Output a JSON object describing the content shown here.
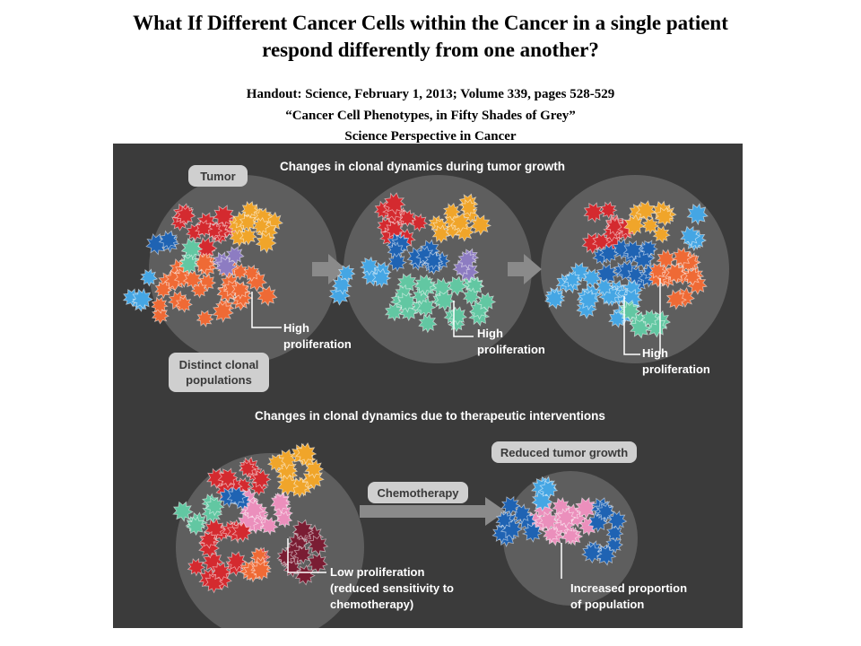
{
  "title": {
    "line1": "What If Different Cancer Cells within the Cancer in a single patient",
    "line2": "respond differently from one another?"
  },
  "handout": {
    "line1": "Handout: Science, February 1, 2013;  Volume 339, pages 528-529",
    "line2": "“Cancer Cell Phenotypes, in Fifty Shades of Grey”",
    "line3": "Science Perspective in Cancer"
  },
  "figure": {
    "tumor_label": "Tumor",
    "section1_header": "Changes in clonal dynamics during tumor growth",
    "distinct_label_line1": "Distinct clonal",
    "distinct_label_line2": "populations",
    "high": "High",
    "proliferation": "proliferation",
    "section2_header": "Changes in clonal dynamics due to therapeutic interventions",
    "reduced_growth_label": "Reduced tumor growth",
    "chemo_label": "Chemotherapy",
    "low_prolif_line1": "Low proliferation",
    "low_prolif_line2": "(reduced sensitivity to",
    "low_prolif_line3": "chemotherapy)",
    "increased_line1": "Increased proportion",
    "increased_line2": "of population"
  },
  "colors": {
    "background": "#3b3b3b",
    "tumor_circle": "#5e5e5e",
    "red": "#d42a2f",
    "yellow": "#f0a52a",
    "orange": "#ef6a35",
    "blue": "#1f63b3",
    "light_blue": "#45a6e4",
    "purple": "#8d7cc2",
    "green": "#62c7a2",
    "pink": "#eb8fbc",
    "maroon": "#7a1d33",
    "pill": "#cfcfcf"
  }
}
